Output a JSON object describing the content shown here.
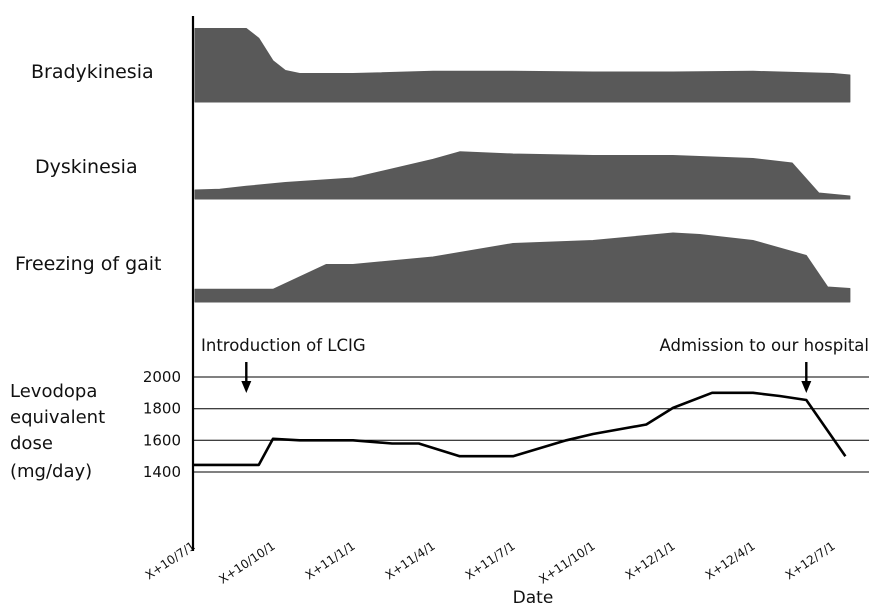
{
  "chart_data": [
    {
      "type": "area",
      "title": "",
      "x_dates": [
        "X+10/7/1",
        "X+10/10/1",
        "X+11/1/1",
        "X+11/4/1",
        "X+11/7/1",
        "X+11/10/1",
        "X+12/1/1",
        "X+12/4/1",
        "X+12/7/1"
      ],
      "series": [
        {
          "name": "Bradykinesia",
          "x": [
            "X+10/6/1",
            "X+10/9/1",
            "X+10/9/15",
            "X+10/10/1",
            "X+10/10/15",
            "X+10/11/1",
            "X+11/1/1",
            "X+11/4/1",
            "X+11/7/1",
            "X+11/10/1",
            "X+12/1/1",
            "X+12/4/1",
            "X+12/7/1",
            "X+12/7/20"
          ],
          "values": [
            0.98,
            0.98,
            0.85,
            0.55,
            0.42,
            0.38,
            0.38,
            0.41,
            0.41,
            0.4,
            0.4,
            0.41,
            0.38,
            0.36
          ]
        },
        {
          "name": "Dyskinesia",
          "x": [
            "X+10/6/1",
            "X+10/8/1",
            "X+10/9/1",
            "X+10/10/15",
            "X+11/1/1",
            "X+11/4/1",
            "X+11/5/1",
            "X+11/7/1",
            "X+11/10/1",
            "X+12/1/1",
            "X+12/4/1",
            "X+12/5/15",
            "X+12/6/15",
            "X+12/7/20"
          ],
          "values": [
            0.12,
            0.13,
            0.17,
            0.22,
            0.28,
            0.53,
            0.63,
            0.6,
            0.58,
            0.58,
            0.54,
            0.48,
            0.08,
            0.04
          ]
        },
        {
          "name": "Freezing of gait",
          "x": [
            "X+10/6/1",
            "X+10/10/1",
            "X+10/12/1",
            "X+11/1/1",
            "X+11/4/1",
            "X+11/7/1",
            "X+11/10/1",
            "X+12/1/1",
            "X+12/2/1",
            "X+12/4/1",
            "X+12/6/1",
            "X+12/6/25",
            "X+12/7/20"
          ],
          "values": [
            0.17,
            0.17,
            0.5,
            0.5,
            0.6,
            0.78,
            0.82,
            0.92,
            0.9,
            0.82,
            0.62,
            0.2,
            0.18
          ]
        }
      ]
    },
    {
      "type": "line",
      "title": "",
      "ylabel": [
        "Levodopa",
        "equivalent",
        "dose",
        " (mg/day)"
      ],
      "xlabel": "Date",
      "yticks": [
        1400,
        1600,
        1800,
        2000
      ],
      "ylim": [
        1400,
        2000
      ],
      "grid": true,
      "x_tick_labels": [
        "X+10/7/1",
        "X+10/10/1",
        "X+11/1/1",
        "X+11/4/1",
        "X+11/7/1",
        "X+11/10/1",
        "X+12/1/1",
        "X+12/4/1",
        "X+12/7/1"
      ],
      "series": [
        {
          "x": [
            "X+10/7/1",
            "X+10/9/15",
            "X+10/10/1",
            "X+10/11/1",
            "X+11/1/1",
            "X+11/2/15",
            "X+11/3/15",
            "X+11/5/1",
            "X+11/7/1",
            "X+11/9/1",
            "X+11/10/1",
            "X+11/12/1",
            "X+12/1/1",
            "X+12/2/15",
            "X+12/4/1",
            "X+12/5/1",
            "X+12/6/1",
            "X+12/7/15"
          ],
          "values": [
            1445,
            1445,
            1610,
            1600,
            1600,
            1580,
            1580,
            1500,
            1500,
            1600,
            1640,
            1700,
            1805,
            1900,
            1900,
            1880,
            1855,
            1500
          ]
        }
      ],
      "annotations": [
        {
          "text": "Introduction of LCIG",
          "x": "X+10/9/1",
          "arrow": "down"
        },
        {
          "text": "Admission to our hospital",
          "x": "X+12/6/1",
          "arrow": "down"
        }
      ]
    }
  ]
}
